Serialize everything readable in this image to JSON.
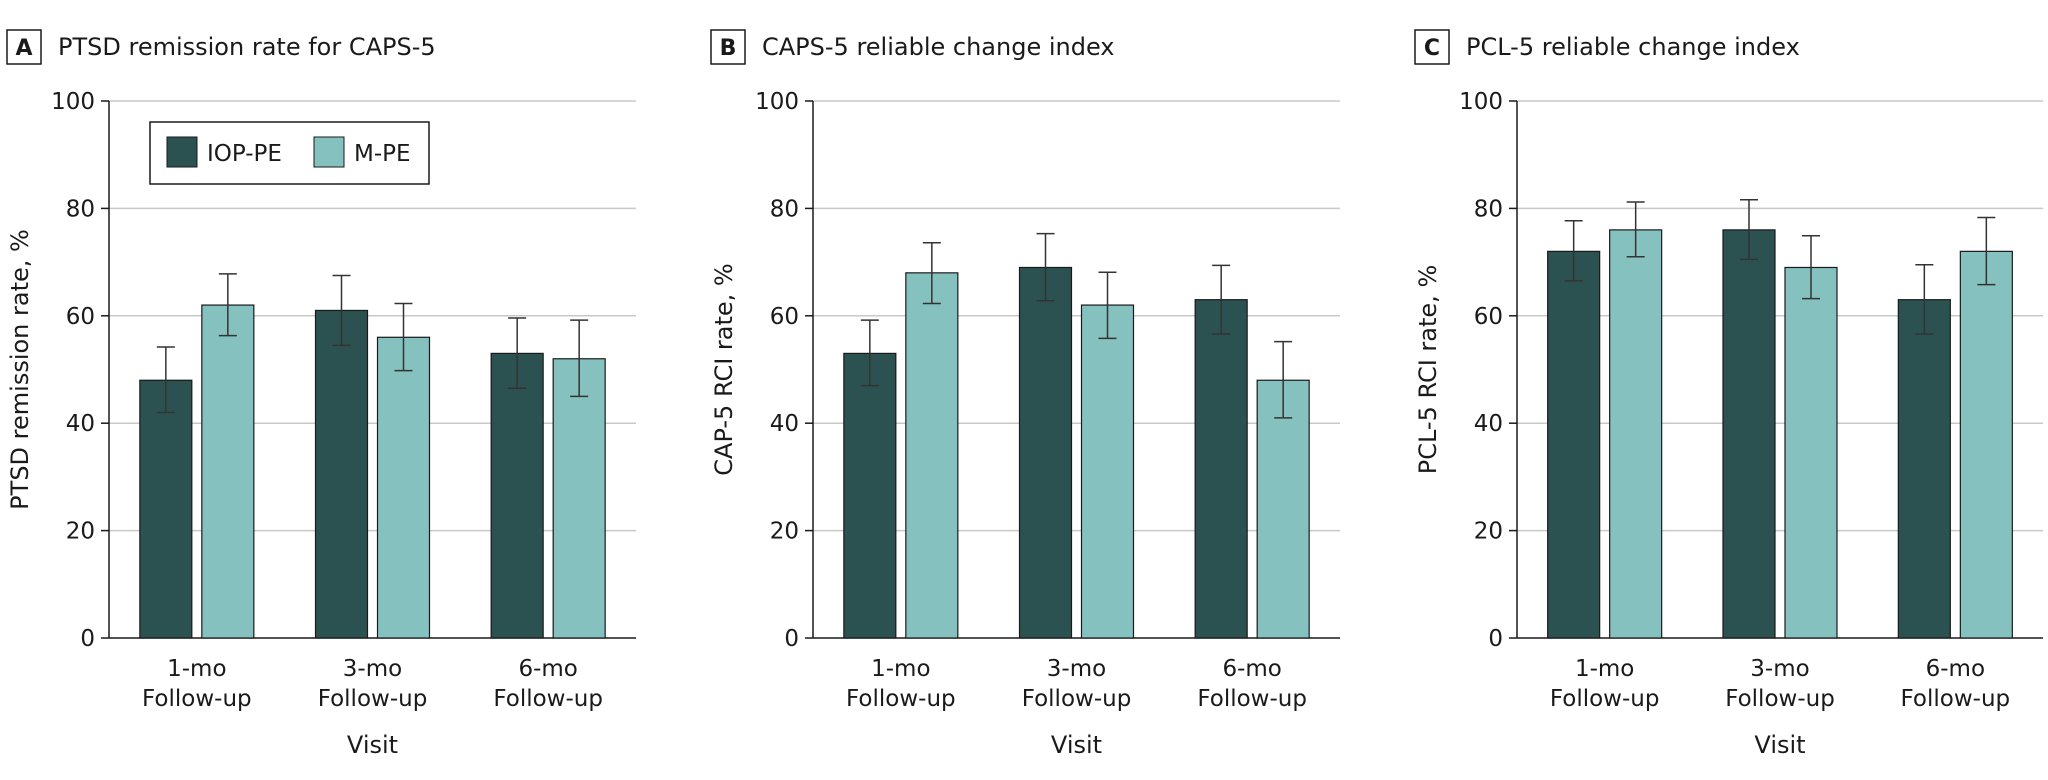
{
  "colors": {
    "iop_pe": "#2b5250",
    "m_pe": "#85c1bf",
    "gridline": "#c8c8c8",
    "axis": "#1a1a1a",
    "error_bar": "#333333"
  },
  "legend": {
    "entries": [
      "IOP-PE",
      "M-PE"
    ]
  },
  "chart_data": [
    {
      "type": "bar",
      "panel_letter": "A",
      "title": "PTSD remission rate for CAPS-5",
      "xlabel": "Visit",
      "ylabel": "PTSD remission rate, %",
      "ylim": [
        0,
        100
      ],
      "yticks": [
        0,
        20,
        40,
        60,
        80,
        100
      ],
      "grid": true,
      "legend": "top-left",
      "categories": [
        [
          "1-mo",
          "Follow-up"
        ],
        [
          "3-mo",
          "Follow-up"
        ],
        [
          "6-mo",
          "Follow-up"
        ]
      ],
      "series": [
        {
          "name": "IOP-PE",
          "values": [
            48,
            61,
            53
          ],
          "err_low": [
            42,
            54.5,
            46.5
          ],
          "err_high": [
            54.2,
            67.5,
            59.6
          ]
        },
        {
          "name": "M-PE",
          "values": [
            62,
            56,
            52
          ],
          "err_low": [
            56.3,
            49.8,
            45
          ],
          "err_high": [
            67.8,
            62.3,
            59.2
          ]
        }
      ]
    },
    {
      "type": "bar",
      "panel_letter": "B",
      "title": "CAPS-5 reliable change index",
      "xlabel": "Visit",
      "ylabel": "CAP-5 RCI rate, %",
      "ylim": [
        0,
        100
      ],
      "yticks": [
        0,
        20,
        40,
        60,
        80,
        100
      ],
      "grid": true,
      "categories": [
        [
          "1-mo",
          "Follow-up"
        ],
        [
          "3-mo",
          "Follow-up"
        ],
        [
          "6-mo",
          "Follow-up"
        ]
      ],
      "series": [
        {
          "name": "IOP-PE",
          "values": [
            53,
            69,
            63
          ],
          "err_low": [
            47,
            62.8,
            56.6
          ],
          "err_high": [
            59.2,
            75.3,
            69.4
          ]
        },
        {
          "name": "M-PE",
          "values": [
            68,
            62,
            48
          ],
          "err_low": [
            62.3,
            55.8,
            41
          ],
          "err_high": [
            73.6,
            68.1,
            55.2
          ]
        }
      ]
    },
    {
      "type": "bar",
      "panel_letter": "C",
      "title": "PCL-5 reliable change index",
      "xlabel": "Visit",
      "ylabel": "PCL-5 RCI rate, %",
      "ylim": [
        0,
        100
      ],
      "yticks": [
        0,
        20,
        40,
        60,
        80,
        100
      ],
      "grid": true,
      "categories": [
        [
          "1-mo",
          "Follow-up"
        ],
        [
          "3-mo",
          "Follow-up"
        ],
        [
          "6-mo",
          "Follow-up"
        ]
      ],
      "series": [
        {
          "name": "IOP-PE",
          "values": [
            72,
            76,
            63
          ],
          "err_low": [
            66.5,
            70.5,
            56.6
          ],
          "err_high": [
            77.7,
            81.6,
            69.5
          ]
        },
        {
          "name": "M-PE",
          "values": [
            76,
            69,
            72
          ],
          "err_low": [
            71,
            63.2,
            65.8
          ],
          "err_high": [
            81.2,
            74.9,
            78.3
          ]
        }
      ]
    }
  ]
}
